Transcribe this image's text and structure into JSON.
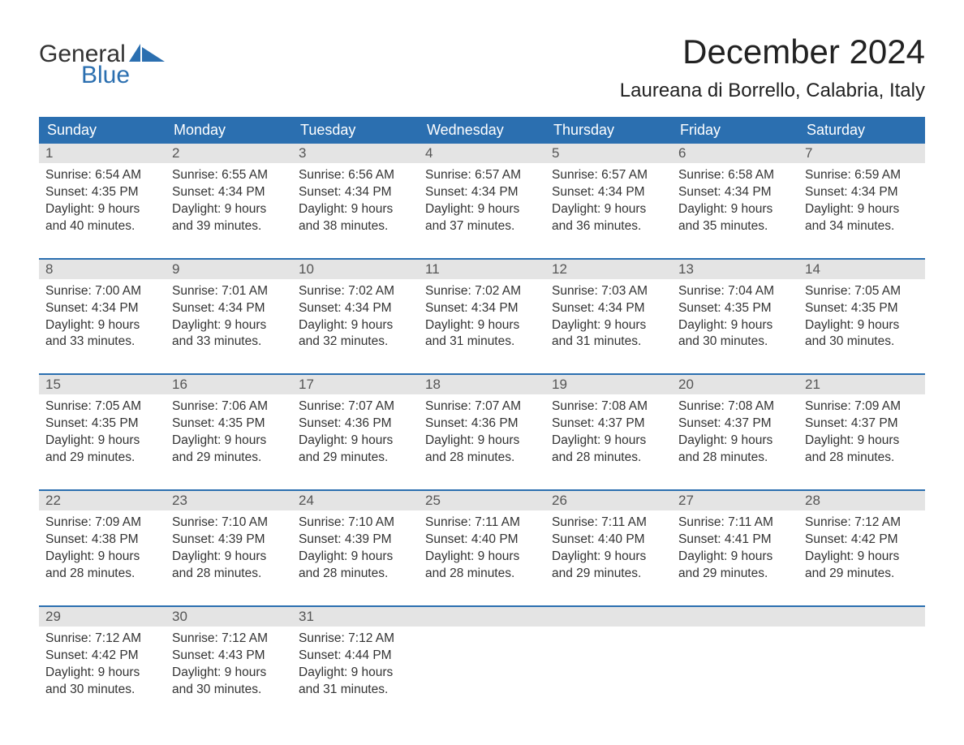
{
  "logo": {
    "part1": "General",
    "part2": "Blue",
    "flag_color": "#2b6fb0"
  },
  "title": "December 2024",
  "location": "Laureana di Borrello, Calabria, Italy",
  "colors": {
    "header_bg": "#2b6fb0",
    "header_text": "#ffffff",
    "daynum_bg": "#e4e4e4",
    "daynum_text": "#555555",
    "body_text": "#333333",
    "week_border": "#2b6fb0",
    "page_bg": "#ffffff"
  },
  "typography": {
    "title_fontsize": 42,
    "location_fontsize": 24,
    "dayheader_fontsize": 18,
    "daynum_fontsize": 17,
    "body_fontsize": 15.5,
    "font_family": "Arial"
  },
  "day_headers": [
    "Sunday",
    "Monday",
    "Tuesday",
    "Wednesday",
    "Thursday",
    "Friday",
    "Saturday"
  ],
  "weeks": [
    [
      {
        "num": "1",
        "sunrise": "Sunrise: 6:54 AM",
        "sunset": "Sunset: 4:35 PM",
        "dl1": "Daylight: 9 hours",
        "dl2": "and 40 minutes."
      },
      {
        "num": "2",
        "sunrise": "Sunrise: 6:55 AM",
        "sunset": "Sunset: 4:34 PM",
        "dl1": "Daylight: 9 hours",
        "dl2": "and 39 minutes."
      },
      {
        "num": "3",
        "sunrise": "Sunrise: 6:56 AM",
        "sunset": "Sunset: 4:34 PM",
        "dl1": "Daylight: 9 hours",
        "dl2": "and 38 minutes."
      },
      {
        "num": "4",
        "sunrise": "Sunrise: 6:57 AM",
        "sunset": "Sunset: 4:34 PM",
        "dl1": "Daylight: 9 hours",
        "dl2": "and 37 minutes."
      },
      {
        "num": "5",
        "sunrise": "Sunrise: 6:57 AM",
        "sunset": "Sunset: 4:34 PM",
        "dl1": "Daylight: 9 hours",
        "dl2": "and 36 minutes."
      },
      {
        "num": "6",
        "sunrise": "Sunrise: 6:58 AM",
        "sunset": "Sunset: 4:34 PM",
        "dl1": "Daylight: 9 hours",
        "dl2": "and 35 minutes."
      },
      {
        "num": "7",
        "sunrise": "Sunrise: 6:59 AM",
        "sunset": "Sunset: 4:34 PM",
        "dl1": "Daylight: 9 hours",
        "dl2": "and 34 minutes."
      }
    ],
    [
      {
        "num": "8",
        "sunrise": "Sunrise: 7:00 AM",
        "sunset": "Sunset: 4:34 PM",
        "dl1": "Daylight: 9 hours",
        "dl2": "and 33 minutes."
      },
      {
        "num": "9",
        "sunrise": "Sunrise: 7:01 AM",
        "sunset": "Sunset: 4:34 PM",
        "dl1": "Daylight: 9 hours",
        "dl2": "and 33 minutes."
      },
      {
        "num": "10",
        "sunrise": "Sunrise: 7:02 AM",
        "sunset": "Sunset: 4:34 PM",
        "dl1": "Daylight: 9 hours",
        "dl2": "and 32 minutes."
      },
      {
        "num": "11",
        "sunrise": "Sunrise: 7:02 AM",
        "sunset": "Sunset: 4:34 PM",
        "dl1": "Daylight: 9 hours",
        "dl2": "and 31 minutes."
      },
      {
        "num": "12",
        "sunrise": "Sunrise: 7:03 AM",
        "sunset": "Sunset: 4:34 PM",
        "dl1": "Daylight: 9 hours",
        "dl2": "and 31 minutes."
      },
      {
        "num": "13",
        "sunrise": "Sunrise: 7:04 AM",
        "sunset": "Sunset: 4:35 PM",
        "dl1": "Daylight: 9 hours",
        "dl2": "and 30 minutes."
      },
      {
        "num": "14",
        "sunrise": "Sunrise: 7:05 AM",
        "sunset": "Sunset: 4:35 PM",
        "dl1": "Daylight: 9 hours",
        "dl2": "and 30 minutes."
      }
    ],
    [
      {
        "num": "15",
        "sunrise": "Sunrise: 7:05 AM",
        "sunset": "Sunset: 4:35 PM",
        "dl1": "Daylight: 9 hours",
        "dl2": "and 29 minutes."
      },
      {
        "num": "16",
        "sunrise": "Sunrise: 7:06 AM",
        "sunset": "Sunset: 4:35 PM",
        "dl1": "Daylight: 9 hours",
        "dl2": "and 29 minutes."
      },
      {
        "num": "17",
        "sunrise": "Sunrise: 7:07 AM",
        "sunset": "Sunset: 4:36 PM",
        "dl1": "Daylight: 9 hours",
        "dl2": "and 29 minutes."
      },
      {
        "num": "18",
        "sunrise": "Sunrise: 7:07 AM",
        "sunset": "Sunset: 4:36 PM",
        "dl1": "Daylight: 9 hours",
        "dl2": "and 28 minutes."
      },
      {
        "num": "19",
        "sunrise": "Sunrise: 7:08 AM",
        "sunset": "Sunset: 4:37 PM",
        "dl1": "Daylight: 9 hours",
        "dl2": "and 28 minutes."
      },
      {
        "num": "20",
        "sunrise": "Sunrise: 7:08 AM",
        "sunset": "Sunset: 4:37 PM",
        "dl1": "Daylight: 9 hours",
        "dl2": "and 28 minutes."
      },
      {
        "num": "21",
        "sunrise": "Sunrise: 7:09 AM",
        "sunset": "Sunset: 4:37 PM",
        "dl1": "Daylight: 9 hours",
        "dl2": "and 28 minutes."
      }
    ],
    [
      {
        "num": "22",
        "sunrise": "Sunrise: 7:09 AM",
        "sunset": "Sunset: 4:38 PM",
        "dl1": "Daylight: 9 hours",
        "dl2": "and 28 minutes."
      },
      {
        "num": "23",
        "sunrise": "Sunrise: 7:10 AM",
        "sunset": "Sunset: 4:39 PM",
        "dl1": "Daylight: 9 hours",
        "dl2": "and 28 minutes."
      },
      {
        "num": "24",
        "sunrise": "Sunrise: 7:10 AM",
        "sunset": "Sunset: 4:39 PM",
        "dl1": "Daylight: 9 hours",
        "dl2": "and 28 minutes."
      },
      {
        "num": "25",
        "sunrise": "Sunrise: 7:11 AM",
        "sunset": "Sunset: 4:40 PM",
        "dl1": "Daylight: 9 hours",
        "dl2": "and 28 minutes."
      },
      {
        "num": "26",
        "sunrise": "Sunrise: 7:11 AM",
        "sunset": "Sunset: 4:40 PM",
        "dl1": "Daylight: 9 hours",
        "dl2": "and 29 minutes."
      },
      {
        "num": "27",
        "sunrise": "Sunrise: 7:11 AM",
        "sunset": "Sunset: 4:41 PM",
        "dl1": "Daylight: 9 hours",
        "dl2": "and 29 minutes."
      },
      {
        "num": "28",
        "sunrise": "Sunrise: 7:12 AM",
        "sunset": "Sunset: 4:42 PM",
        "dl1": "Daylight: 9 hours",
        "dl2": "and 29 minutes."
      }
    ],
    [
      {
        "num": "29",
        "sunrise": "Sunrise: 7:12 AM",
        "sunset": "Sunset: 4:42 PM",
        "dl1": "Daylight: 9 hours",
        "dl2": "and 30 minutes."
      },
      {
        "num": "30",
        "sunrise": "Sunrise: 7:12 AM",
        "sunset": "Sunset: 4:43 PM",
        "dl1": "Daylight: 9 hours",
        "dl2": "and 30 minutes."
      },
      {
        "num": "31",
        "sunrise": "Sunrise: 7:12 AM",
        "sunset": "Sunset: 4:44 PM",
        "dl1": "Daylight: 9 hours",
        "dl2": "and 31 minutes."
      },
      {
        "empty": true
      },
      {
        "empty": true
      },
      {
        "empty": true
      },
      {
        "empty": true
      }
    ]
  ]
}
